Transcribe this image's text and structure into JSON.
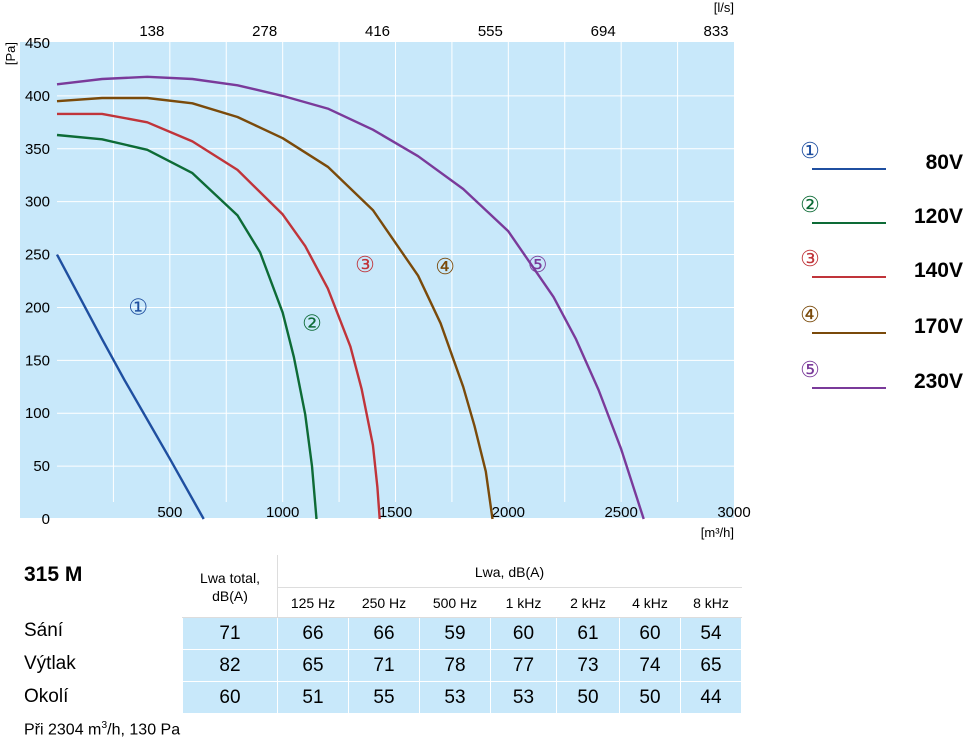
{
  "chart_data": {
    "type": "line",
    "xlabel": "[m³/h]",
    "ylabel": "[Pa]",
    "top_axis_label": "[l/s]",
    "xlim": [
      0,
      3000
    ],
    "ylim": [
      0,
      450
    ],
    "x_ticks": [
      "500",
      "1000",
      "1500",
      "2000",
      "2500",
      "3000"
    ],
    "y_ticks": [
      "0",
      "50",
      "100",
      "150",
      "200",
      "250",
      "300",
      "350",
      "400",
      "450"
    ],
    "top_ticks": [
      {
        "x": 500,
        "label": "138"
      },
      {
        "x": 1000,
        "label": "278"
      },
      {
        "x": 1500,
        "label": "416"
      },
      {
        "x": 2000,
        "label": "555"
      },
      {
        "x": 2500,
        "label": "694"
      },
      {
        "x": 3000,
        "label": "833"
      }
    ],
    "grid": true,
    "legend_position": "right",
    "series": [
      {
        "marker": "①",
        "name": "80V",
        "color": "#1f4fa0",
        "x": [
          0,
          100,
          200,
          300,
          400,
          500,
          600,
          650
        ],
        "y": [
          250,
          210,
          170,
          131,
          94,
          57,
          19,
          0
        ],
        "label_at": [
          360,
          200
        ]
      },
      {
        "marker": "②",
        "name": "120V",
        "color": "#0d6b36",
        "x": [
          0,
          200,
          400,
          600,
          800,
          900,
          1000,
          1050,
          1100,
          1130,
          1150
        ],
        "y": [
          363,
          359,
          349,
          327,
          287,
          252,
          195,
          153,
          99,
          50,
          0
        ],
        "label_at": [
          1130,
          185
        ]
      },
      {
        "marker": "③",
        "name": "140V",
        "color": "#c0343a",
        "x": [
          0,
          200,
          400,
          600,
          800,
          1000,
          1100,
          1200,
          1300,
          1350,
          1400,
          1420,
          1430
        ],
        "y": [
          383,
          383,
          375,
          357,
          330,
          288,
          258,
          218,
          163,
          123,
          70,
          30,
          0
        ],
        "label_at": [
          1365,
          240
        ]
      },
      {
        "marker": "④",
        "name": "170V",
        "color": "#7a4a0a",
        "x": [
          0,
          200,
          400,
          600,
          800,
          1000,
          1200,
          1400,
          1600,
          1700,
          1800,
          1850,
          1900,
          1930
        ],
        "y": [
          395,
          398,
          398,
          393,
          380,
          360,
          333,
          292,
          230,
          185,
          125,
          88,
          45,
          0
        ],
        "label_at": [
          1720,
          238
        ]
      },
      {
        "marker": "⑤",
        "name": "230V",
        "color": "#7a3a9a",
        "x": [
          0,
          200,
          400,
          600,
          800,
          1000,
          1200,
          1400,
          1600,
          1800,
          2000,
          2200,
          2300,
          2400,
          2500,
          2600
        ],
        "y": [
          411,
          416,
          418,
          416,
          410,
          400,
          388,
          368,
          343,
          312,
          272,
          210,
          170,
          122,
          66,
          0
        ],
        "label_at": [
          2130,
          240
        ]
      }
    ]
  },
  "table": {
    "model": "315 M",
    "lwa_total_header": [
      "Lwa total,",
      "dB(A)"
    ],
    "band_header": "Lwa, dB(A)",
    "frequencies": [
      "125 Hz",
      "250 Hz",
      "500 Hz",
      "1 kHz",
      "2 kHz",
      "4 kHz",
      "8 kHz"
    ],
    "rows": [
      {
        "label": "Sání",
        "total": "71",
        "values": [
          "66",
          "66",
          "59",
          "60",
          "61",
          "60",
          "54"
        ]
      },
      {
        "label": "Výtlak",
        "total": "82",
        "values": [
          "65",
          "71",
          "78",
          "77",
          "73",
          "74",
          "65"
        ]
      },
      {
        "label": "Okolí",
        "total": "60",
        "values": [
          "51",
          "55",
          "53",
          "53",
          "50",
          "50",
          "44"
        ]
      }
    ],
    "footnote_prefix": "Při 2304 m",
    "footnote_suffix": "/h, 130 Pa"
  }
}
